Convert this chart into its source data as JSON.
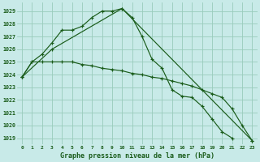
{
  "title": "Graphe pression niveau de la mer (hPa)",
  "background_color": "#c8eae8",
  "grid_color": "#99ccbb",
  "line_color": "#1a5c1a",
  "ylim": [
    1018.5,
    1029.65
  ],
  "yticks": [
    1019,
    1020,
    1021,
    1022,
    1023,
    1024,
    1025,
    1026,
    1027,
    1028,
    1029
  ],
  "xlim": [
    -0.5,
    23.5
  ],
  "x_labels": [
    "0",
    "1",
    "2",
    "3",
    "4",
    "5",
    "6",
    "7",
    "8",
    "9",
    "10",
    "11",
    "12",
    "13",
    "14",
    "15",
    "16",
    "17",
    "18",
    "19",
    "20",
    "21",
    "22",
    "23"
  ],
  "series": [
    {
      "x": [
        0,
        1,
        2,
        3,
        4,
        5,
        6,
        7,
        8,
        9,
        10,
        11,
        12,
        13,
        14,
        15,
        16,
        17,
        18,
        19,
        20,
        21
      ],
      "y": [
        1023.8,
        1025.0,
        1025.6,
        1026.5,
        1027.5,
        1027.5,
        1027.8,
        1028.5,
        1029.0,
        1029.0,
        1029.2,
        1028.5,
        1027.0,
        1025.2,
        1024.5,
        1022.8,
        1022.3,
        1022.2,
        1021.5,
        1020.5,
        1019.5,
        1019.0
      ]
    },
    {
      "x": [
        0,
        3,
        10,
        23
      ],
      "y": [
        1023.8,
        1026.0,
        1029.2,
        1018.8
      ]
    },
    {
      "x": [
        0,
        1,
        2,
        3,
        4,
        5,
        6,
        7,
        8,
        9,
        10,
        11,
        12,
        13,
        14,
        15,
        16,
        17,
        18,
        19,
        20,
        21,
        22,
        23
      ],
      "y": [
        1023.8,
        1025.0,
        1025.0,
        1025.0,
        1025.0,
        1025.0,
        1024.8,
        1024.7,
        1024.5,
        1024.4,
        1024.3,
        1024.1,
        1024.0,
        1023.8,
        1023.7,
        1023.5,
        1023.3,
        1023.1,
        1022.8,
        1022.5,
        1022.2,
        1021.3,
        1020.0,
        1018.8
      ]
    }
  ]
}
